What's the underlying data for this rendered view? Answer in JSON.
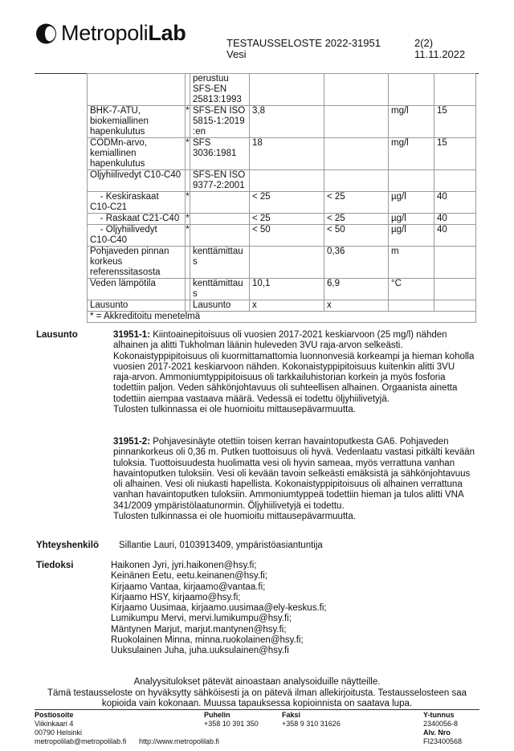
{
  "header": {
    "logo_text_regular": "Metropoli",
    "logo_text_bold": "Lab",
    "report_title": "TESTAUSSELOSTE 2022-31951",
    "subtitle": "Vesi",
    "page": "2(2)",
    "date": "11.11.2022"
  },
  "table": {
    "rows": [
      {
        "name": "",
        "star": "",
        "method": "perustuu\nSFS-EN\n25813:1993",
        "v1": "",
        "v2": "",
        "unit": "",
        "limit": ""
      },
      {
        "name": "BHK-7-ATU,\nbiokemiallinen\nhapenkulutus",
        "star": "*",
        "method": "SFS-EN ISO\n5815-1:2019\n:en",
        "v1": "3,8",
        "v2": "",
        "unit": "mg/l",
        "limit": "15"
      },
      {
        "name": "CODMn-arvo,\nkemiallinen\nhapenkulutus",
        "star": "*",
        "method": "SFS\n3036:1981",
        "v1": "18",
        "v2": "",
        "unit": "mg/l",
        "limit": "15"
      },
      {
        "name": "Öljyhiilivedyt C10-C40",
        "star": "",
        "method": "SFS-EN ISO\n9377-2:2001",
        "v1": "",
        "v2": "",
        "unit": "",
        "limit": ""
      },
      {
        "name": "    - Keskiraskaat\nC10-C21",
        "star": "*",
        "method": "",
        "v1": "< 25",
        "v2": "< 25",
        "unit": "µg/l",
        "limit": "40"
      },
      {
        "name": "    - Raskaat C21-C40",
        "star": "*",
        "method": "",
        "v1": "< 25",
        "v2": "< 25",
        "unit": "µg/l",
        "limit": "40"
      },
      {
        "name": "    - Öljyhiilivedyt\nC10-C40",
        "star": "*",
        "method": "",
        "v1": "< 50",
        "v2": "< 50",
        "unit": "µg/l",
        "limit": "40"
      },
      {
        "name": "Pohjaveden pinnan\nkorkeus\nreferenssitasosta",
        "star": "",
        "method": "kenttämittau\ns",
        "v1": "",
        "v2": "0,36",
        "unit": "m",
        "limit": ""
      },
      {
        "name": "Veden lämpötila",
        "star": "",
        "method": "kenttämittau\ns",
        "v1": "10,1",
        "v2": "6,9",
        "unit": "°C",
        "limit": ""
      },
      {
        "name": "Lausunto",
        "star": "",
        "method": "Lausunto",
        "v1": "x",
        "v2": "x",
        "unit": "",
        "limit": ""
      }
    ],
    "footnote": "* = Akkreditoitu menetelmä"
  },
  "statement": {
    "label": "Lausunto",
    "p1_id": "31951-1:",
    "p1_lines": [
      " Kiintoainepitoisuus oli vuosien 2017-2021 keskiarvoon (25 mg/l) nähden",
      "alhainen ja alitti Tukholman läänin huleveden 3VU raja-arvon selkeästi.",
      "Kokonaistyppipitoisuus oli kuormittamattomia luonnonvesiä korkeampi ja hieman koholla",
      "vuosien 2017-2021 keskiarvoon nähden. Kokonaistyppipitoisuus kuitenkin alitti 3VU",
      "raja-arvon. Ammoniumtyppipitoisuus oli tarkkailuhistorian korkein ja myös fosforia",
      "todettiin paljon. Veden sähkönjohtavuus oli suhteellisen alhainen. Orgaanista ainetta",
      "todettiin aiempaa vastaava määrä. Vedessä ei todettu öljyhiilivetyjä.",
      "Tulosten tulkinnassa ei ole huomioitu mittausepävarmuutta."
    ],
    "p2_id": "31951-2:",
    "p2_lines": [
      " Pohjavesinäyte otettiin toisen kerran havaintoputkesta GA6. Pohjaveden",
      "pinnankorkeus oli 0,36 m. Putken tuottoisuus oli hyvä. Vedenlaatu vastasi pitkälti kevään",
      "tuloksia. Tuottoisuudesta huolimatta vesi oli hyvin sameaa, myös verrattuna vanhan",
      "havaintoputken tuloksiin. Vesi oli kevään tavoin selkeästi emäksistä ja sähkönjohtavuus",
      "oli alhainen. Vesi oli niukasti hapellista. Kokonaistyppipitoisuus oli alhainen verrattuna",
      "vanhan havaintoputken tuloksiin. Ammoniumtyppeä todettiin hieman ja tulos alitti VNA",
      "341/2009 ympäristölaatunormin. Öljyhiilivetyjä ei todettu.",
      "Tulosten tulkinnassa ei ole huomioitu mittausepävarmuutta."
    ]
  },
  "contact": {
    "label": "Yhteyshenkilö",
    "value": "Sillantie Lauri, 0103913409, ympäristöasiantuntija"
  },
  "cc": {
    "label": "Tiedoksi",
    "items": [
      "Haikonen Jyri, jyri.haikonen@hsy.fi;",
      "Keinänen Eetu, eetu.keinanen@hsy.fi;",
      "Kirjaamo Vantaa, kirjaamo@vantaa.fi;",
      "Kirjaamo HSY, kirjaamo@hsy.fi;",
      "Kirjaamo Uusimaa, kirjaamo.uusimaa@ely-keskus.fi;",
      "Lumikumpu Mervi, mervi.lumikumpu@hsy.fi;",
      "Mäntynen Marjut, marjut.mantynen@hsy.fi;",
      "Ruokolainen Minna, minna.ruokolainen@hsy.fi;",
      "Uuksulainen Juha, juha.uuksulainen@hsy.fi"
    ]
  },
  "disclaimer": [
    "Analyysitulokset pätevät ainoastaan analysoiduille näytteille.",
    "Tämä testausseloste on hyväksytty sähköisesti ja on pätevä ilman allekirjoitusta. Testausselosteen saa",
    "kopioida vain kokonaan. Muussa tapauksessa kopioinnista on saatava lupa."
  ],
  "footer": {
    "address_label": "Postiosoite",
    "address_line1": "Viikinkaari 4",
    "address_line2": "00790 Helsinki",
    "email": "metropolilab@metropolilab.fi",
    "website": "http://www.metropolilab.fi",
    "phone_label": "Puhelin",
    "phone": "+358 10 391 350",
    "fax_label": "Faksi",
    "fax": "+358 9 310 31626",
    "ytunnus_label": "Y-tunnus",
    "ytunnus": "2340056-8",
    "alv_label": "Alv. Nro",
    "alv": "FI23400568"
  }
}
